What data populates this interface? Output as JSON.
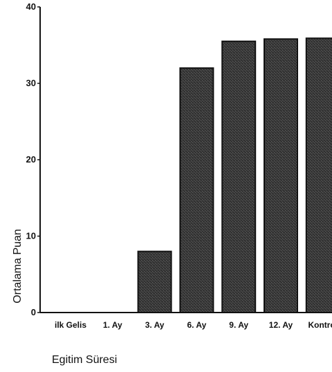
{
  "chart_data": {
    "type": "bar",
    "categories": [
      "ilk Gelis",
      "1. Ay",
      "3. Ay",
      "6. Ay",
      "9. Ay",
      "12. Ay",
      "Kontrol"
    ],
    "values": [
      0,
      0,
      8,
      32,
      35.5,
      35.8,
      35.9
    ],
    "xlabel": "Egitim Süresi",
    "ylabel": "Ortalama Puan",
    "ylim": [
      0,
      40
    ],
    "yticks": [
      0,
      10,
      20,
      30,
      40
    ],
    "grid": false,
    "colors": {
      "bar": "#3a3a3a",
      "bar_edge": "#111111",
      "axis": "#111111"
    }
  }
}
